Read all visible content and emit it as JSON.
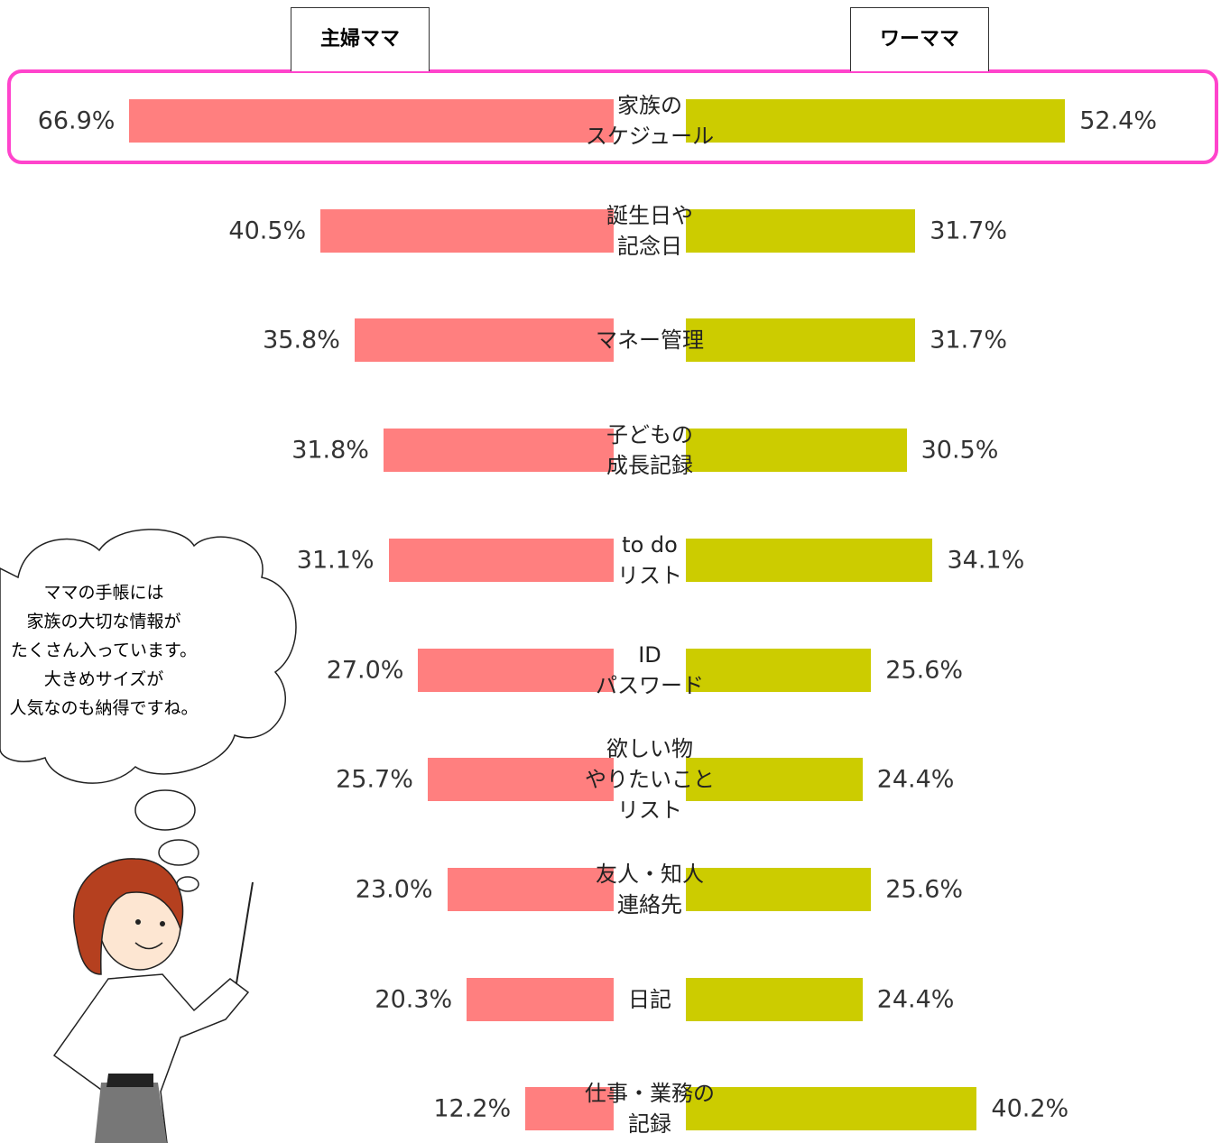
{
  "chart_data": {
    "type": "butterfly-bar",
    "categories": [
      "家族の\nスケジュール",
      "誕生日や\n記念日",
      "マネー管理",
      "子どもの\n成長記録",
      "to do\nリスト",
      "ID\nパスワード",
      "欲しい物\nやりたいこと\nリスト",
      "友人・知人\n連絡先",
      "日記",
      "仕事・業務の\n記録"
    ],
    "series": [
      {
        "name": "主婦ママ",
        "color": "#ff7f7f",
        "values": [
          66.9,
          40.5,
          35.8,
          31.8,
          31.1,
          27.0,
          25.7,
          23.0,
          20.3,
          12.2
        ],
        "value_labels": [
          "66.9%",
          "40.5%",
          "35.8%",
          "31.8%",
          "31.1%",
          "27.0%",
          "25.7%",
          "23.0%",
          "20.3%",
          "12.2%"
        ]
      },
      {
        "name": "ワーママ",
        "color": "#cccc00",
        "values": [
          52.4,
          31.7,
          31.7,
          30.5,
          34.1,
          25.6,
          24.4,
          25.6,
          24.4,
          40.2
        ],
        "value_labels": [
          "52.4%",
          "31.7%",
          "31.7%",
          "30.5%",
          "34.1%",
          "25.6%",
          "24.4%",
          "25.6%",
          "24.4%",
          "40.2%"
        ]
      }
    ],
    "note": "ママの手帳には\n家族の大切な情報が\nたくさん入っています。\n大きめサイズが\n人気なのも納得ですね。"
  }
}
